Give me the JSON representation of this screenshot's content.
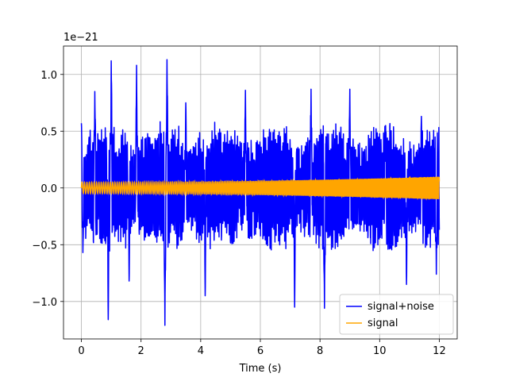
{
  "chart_data": {
    "type": "line",
    "title": "",
    "xlabel": "Time (s)",
    "ylabel": "",
    "offset_text": "1e−21",
    "xlim": [
      -0.6,
      12.6
    ],
    "ylim": [
      -1.33,
      1.25
    ],
    "xticks": [
      0,
      2,
      4,
      6,
      8,
      10,
      12
    ],
    "xtick_labels": [
      "0",
      "2",
      "4",
      "6",
      "8",
      "10",
      "12"
    ],
    "yticks": [
      -1.0,
      -0.5,
      0.0,
      0.5,
      1.0
    ],
    "ytick_labels": [
      "−1.0",
      "−0.5",
      "0.0",
      "0.5",
      "1.0"
    ],
    "grid": true,
    "legend_position": "lower-right",
    "series": [
      {
        "name": "signal+noise",
        "color": "#0000ff",
        "description_range": [
          0,
          12
        ],
        "peaks": [
          {
            "x": 0.0,
            "y": 0.57
          },
          {
            "x": 0.05,
            "y": -0.57
          },
          {
            "x": 0.45,
            "y": 0.85
          },
          {
            "x": 0.9,
            "y": -1.16
          },
          {
            "x": 1.0,
            "y": 1.12
          },
          {
            "x": 1.6,
            "y": -0.82
          },
          {
            "x": 1.85,
            "y": 1.08
          },
          {
            "x": 2.8,
            "y": -1.21
          },
          {
            "x": 2.87,
            "y": 1.13
          },
          {
            "x": 3.5,
            "y": 0.75
          },
          {
            "x": 4.15,
            "y": -0.95
          },
          {
            "x": 5.5,
            "y": 0.86
          },
          {
            "x": 7.15,
            "y": -1.05
          },
          {
            "x": 7.7,
            "y": 0.87
          },
          {
            "x": 8.15,
            "y": -1.06
          },
          {
            "x": 9.0,
            "y": 0.87
          },
          {
            "x": 10.2,
            "y": 0.55
          },
          {
            "x": 10.9,
            "y": -0.85
          },
          {
            "x": 11.4,
            "y": 0.63
          },
          {
            "x": 11.9,
            "y": -0.76
          }
        ]
      },
      {
        "name": "signal",
        "color": "#ffa500",
        "amplitude_start": 0.05,
        "amplitude_end": 0.1,
        "x_range": [
          0,
          12
        ]
      }
    ]
  }
}
